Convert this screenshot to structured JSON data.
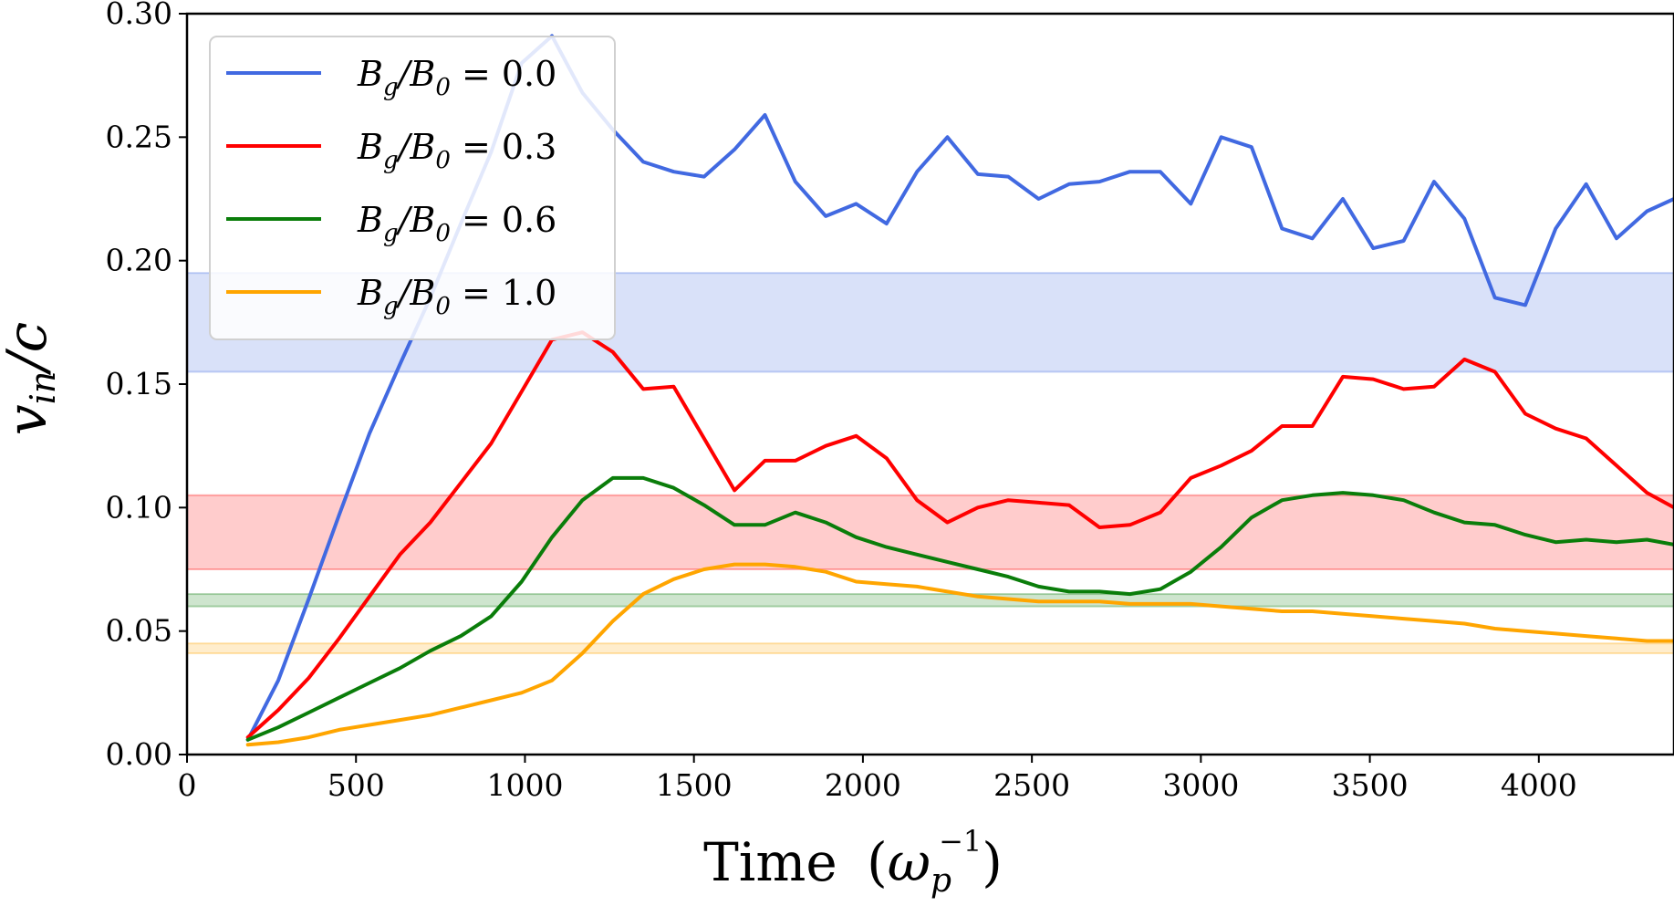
{
  "chart_data": {
    "type": "line",
    "xlabel": "Time (ω_p^{-1})",
    "xlabel_main": "Time",
    "xlabel_unit_open": "(",
    "xlabel_unit_base": "ω",
    "xlabel_unit_sub": "p",
    "xlabel_unit_sup": "−1",
    "xlabel_unit_close": ")",
    "ylabel": "v_in/c",
    "ylabel_base": "v",
    "ylabel_sub": "in",
    "ylabel_rest": "/c",
    "xlim": [
      0,
      4400
    ],
    "ylim": [
      0,
      0.3
    ],
    "xticks": [
      0,
      500,
      1000,
      1500,
      2000,
      2500,
      3000,
      3500,
      4000
    ],
    "xtick_labels": [
      "0",
      "500",
      "1000",
      "1500",
      "2000",
      "2500",
      "3000",
      "3500",
      "4000"
    ],
    "yticks": [
      0,
      0.05,
      0.1,
      0.15,
      0.2,
      0.25,
      0.3
    ],
    "ytick_labels": [
      "0.00",
      "0.05",
      "0.10",
      "0.15",
      "0.20",
      "0.25",
      "0.30"
    ],
    "grid": false,
    "legend_position": "upper-left",
    "x": [
      180,
      270,
      360,
      450,
      540,
      630,
      720,
      810,
      900,
      990,
      1080,
      1170,
      1260,
      1350,
      1440,
      1530,
      1620,
      1710,
      1800,
      1890,
      1980,
      2070,
      2160,
      2250,
      2340,
      2430,
      2520,
      2610,
      2700,
      2790,
      2880,
      2970,
      3060,
      3150,
      3240,
      3330,
      3420,
      3510,
      3600,
      3690,
      3780,
      3870,
      3960,
      4050,
      4140,
      4230,
      4320,
      4400
    ],
    "series": [
      {
        "name": "B_g/B_0 = 0.0",
        "label_lhs": "Bg/B0",
        "label_rhs": "0.0",
        "color": "#4169e1",
        "values": [
          0.006,
          0.03,
          0.063,
          0.097,
          0.13,
          0.158,
          0.185,
          0.215,
          0.244,
          0.28,
          0.291,
          0.268,
          0.253,
          0.24,
          0.236,
          0.234,
          0.245,
          0.259,
          0.232,
          0.218,
          0.223,
          0.215,
          0.236,
          0.25,
          0.235,
          0.234,
          0.225,
          0.231,
          0.232,
          0.236,
          0.236,
          0.223,
          0.25,
          0.246,
          0.213,
          0.209,
          0.225,
          0.205,
          0.208,
          0.232,
          0.217,
          0.185,
          0.182,
          0.213,
          0.231,
          0.209,
          0.22,
          0.225
        ],
        "band": [
          0.155,
          0.195
        ]
      },
      {
        "name": "B_g/B_0 = 0.3",
        "label_lhs": "Bg/B0",
        "label_rhs": "0.3",
        "color": "#ff0000",
        "values": [
          0.007,
          0.018,
          0.031,
          0.047,
          0.064,
          0.081,
          0.094,
          0.11,
          0.126,
          0.147,
          0.168,
          0.171,
          0.163,
          0.148,
          0.149,
          0.128,
          0.107,
          0.119,
          0.119,
          0.125,
          0.129,
          0.12,
          0.103,
          0.094,
          0.1,
          0.103,
          0.102,
          0.101,
          0.092,
          0.093,
          0.098,
          0.112,
          0.117,
          0.123,
          0.133,
          0.133,
          0.153,
          0.152,
          0.148,
          0.149,
          0.16,
          0.155,
          0.138,
          0.132,
          0.128,
          0.117,
          0.106,
          0.1
        ],
        "band": [
          0.075,
          0.105
        ]
      },
      {
        "name": "B_g/B_0 = 0.6",
        "label_lhs": "Bg/B0",
        "label_rhs": "0.6",
        "color": "#0a7d0a",
        "values": [
          0.006,
          0.011,
          0.017,
          0.023,
          0.029,
          0.035,
          0.042,
          0.048,
          0.056,
          0.07,
          0.088,
          0.103,
          0.112,
          0.112,
          0.108,
          0.101,
          0.093,
          0.093,
          0.098,
          0.094,
          0.088,
          0.084,
          0.081,
          0.078,
          0.075,
          0.072,
          0.068,
          0.066,
          0.066,
          0.065,
          0.067,
          0.074,
          0.084,
          0.096,
          0.103,
          0.105,
          0.106,
          0.105,
          0.103,
          0.098,
          0.094,
          0.093,
          0.089,
          0.086,
          0.087,
          0.086,
          0.087,
          0.085
        ],
        "band": [
          0.06,
          0.065
        ]
      },
      {
        "name": "B_g/B_0 = 1.0",
        "label_lhs": "Bg/B0",
        "label_rhs": "1.0",
        "color": "#ffa500",
        "values": [
          0.004,
          0.005,
          0.007,
          0.01,
          0.012,
          0.014,
          0.016,
          0.019,
          0.022,
          0.025,
          0.03,
          0.041,
          0.054,
          0.065,
          0.071,
          0.075,
          0.077,
          0.077,
          0.076,
          0.074,
          0.07,
          0.069,
          0.068,
          0.066,
          0.064,
          0.063,
          0.062,
          0.062,
          0.062,
          0.061,
          0.061,
          0.061,
          0.06,
          0.059,
          0.058,
          0.058,
          0.057,
          0.056,
          0.055,
          0.054,
          0.053,
          0.051,
          0.05,
          0.049,
          0.048,
          0.047,
          0.046,
          0.046
        ],
        "band": [
          0.041,
          0.045
        ]
      }
    ]
  }
}
